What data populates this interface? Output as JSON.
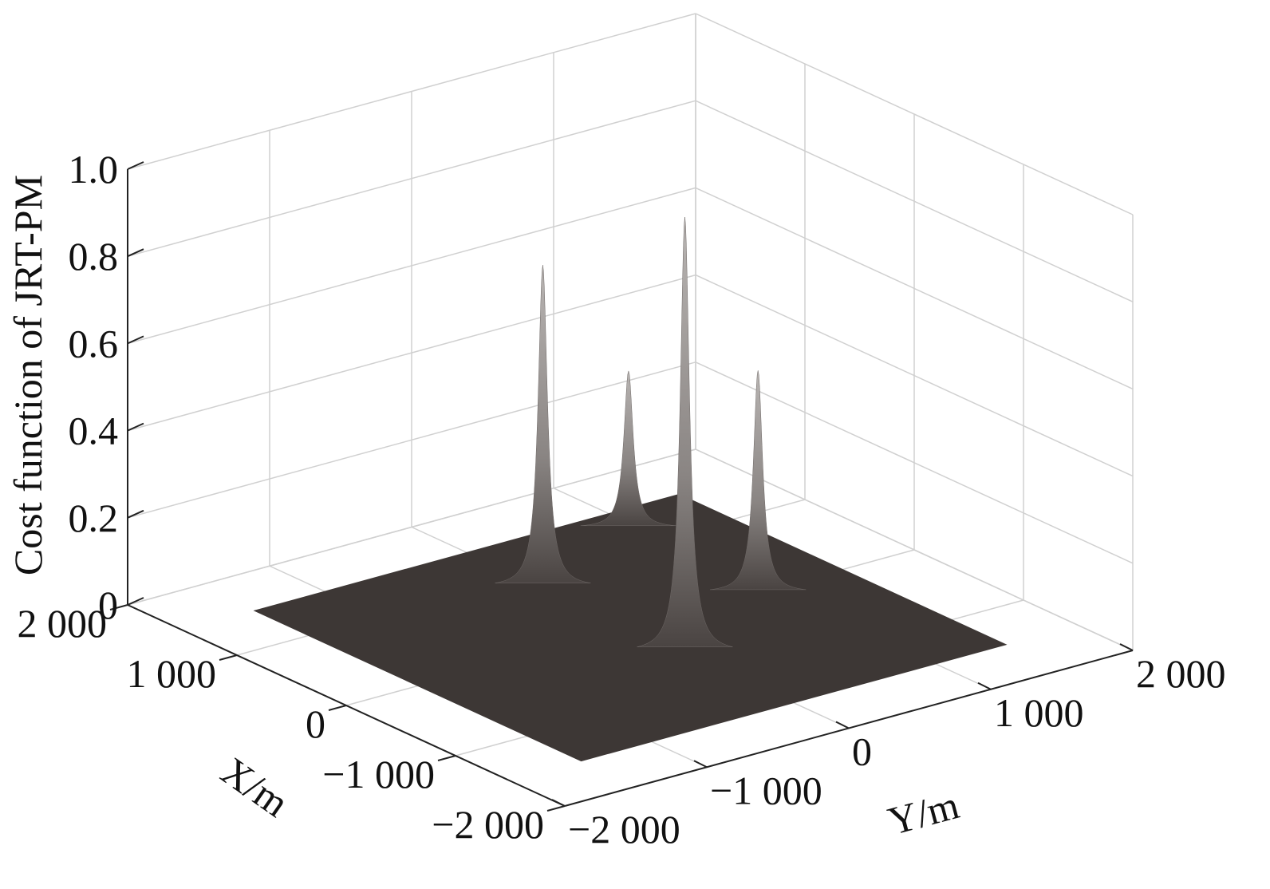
{
  "chart_data": {
    "type": "surface3d",
    "xlabel": "X/m",
    "ylabel": "Y/m",
    "zlabel": "Cost function of JRT-PM",
    "xlim": [
      -2000,
      2000
    ],
    "ylim": [
      -2000,
      2000
    ],
    "zlim": [
      0,
      1
    ],
    "xticks": [
      {
        "value": -2000,
        "label": "−2 000"
      },
      {
        "value": -1000,
        "label": "−1 000"
      },
      0,
      {
        "value": 1000,
        "label": "1 000"
      },
      {
        "value": 2000,
        "label": "2 000"
      }
    ],
    "yticks": [
      {
        "value": -2000,
        "label": "−2 000"
      },
      {
        "value": -1000,
        "label": "−1 000"
      },
      0,
      {
        "value": 1000,
        "label": "1 000"
      },
      {
        "value": 2000,
        "label": "2 000"
      }
    ],
    "zticks": [
      0,
      0.2,
      0.4,
      0.6,
      0.8,
      {
        "value": 1,
        "label": "1.0"
      }
    ],
    "grid": true,
    "color": "#3d3735",
    "surface": {
      "xrange": [
        -1500,
        1500
      ],
      "yrange": [
        -1500,
        1500
      ]
    },
    "peaks": {
      "x": [
        1250,
        800,
        0,
        -500
      ],
      "y": [
        950,
        0,
        900,
        0
      ],
      "z": [
        0.36,
        0.74,
        0.51,
        1.0
      ]
    }
  }
}
